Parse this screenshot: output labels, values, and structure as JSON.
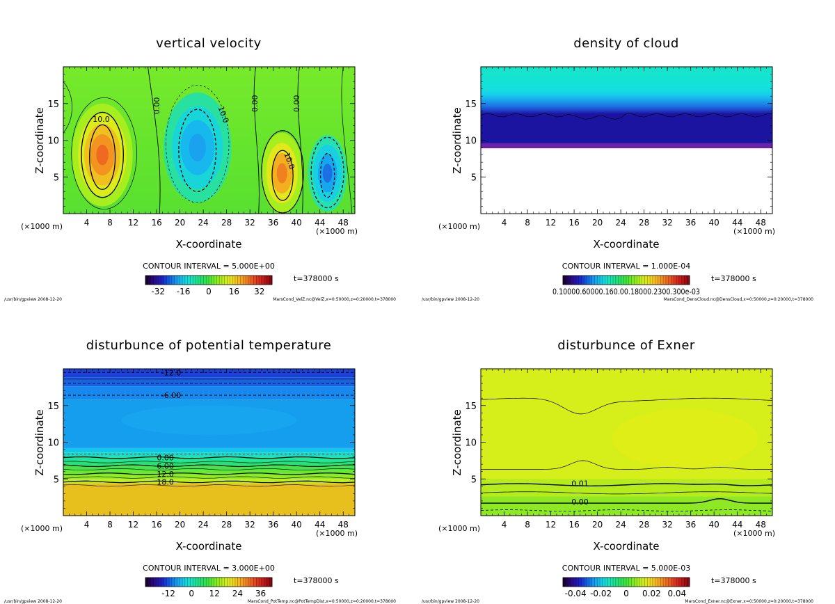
{
  "chart_data": [
    {
      "type": "heatmap",
      "title": "vertical velocity",
      "xlabel": "X-coordinate",
      "ylabel": "Z-coordinate",
      "x_unit": "(×1000 m)",
      "xticks": [
        4,
        8,
        12,
        16,
        20,
        24,
        28,
        32,
        36,
        40,
        44,
        48
      ],
      "yticks": [
        5,
        10,
        15
      ],
      "xlim": [
        0,
        50
      ],
      "ylim": [
        0,
        20
      ],
      "contour_interval": "CONTOUR INTERVAL = 5.000E+00",
      "contour_labels": [
        {
          "text": "10.0",
          "x": 6.5,
          "z": 12.9
        },
        {
          "text": "0.00",
          "x": 16,
          "z": 14.7
        },
        {
          "text": "10.0",
          "x": 27.5,
          "z": 13.5
        },
        {
          "text": "0.00",
          "x": 32.8,
          "z": 15
        },
        {
          "text": "0.00",
          "x": 40,
          "z": 15
        },
        {
          "text": "10.0",
          "x": 38.8,
          "z": 7.2
        }
      ],
      "colorbar_ticks": [
        "-32",
        "-16",
        "0",
        "16",
        "32"
      ],
      "colorbar_range": [
        -40,
        40
      ],
      "time_label": "t=378000 s",
      "footer_left": "/usr/bin/gpview  2008-12-20",
      "footer_right": "MarsCond_VelZ.nc@VelZ,x=0:50000,z=0:20000,t=378000"
    },
    {
      "type": "heatmap",
      "title": "density of cloud",
      "xlabel": "X-coordinate",
      "ylabel": "Z-coordinate",
      "x_unit": "(×1000 m)",
      "xticks": [
        4,
        8,
        12,
        16,
        20,
        24,
        28,
        32,
        36,
        40,
        44,
        48
      ],
      "yticks": [
        5,
        10,
        15
      ],
      "xlim": [
        0,
        50
      ],
      "ylim": [
        0,
        20
      ],
      "contour_interval": "CONTOUR INTERVAL = 1.000E-04",
      "colorbar_ticks": [
        "0.10000.60000.160.00.18000.2300.300e-03"
      ],
      "time_label": "t=378000 s",
      "footer_left": "/usr/bin/gpview  2008-12-20",
      "footer_right": "MarsCond_DensCloud.nc@DensCloud,x=0:50000,z=0:20000,t=378000"
    },
    {
      "type": "heatmap",
      "title": "disturbunce of potential temperature",
      "xlabel": "X-coordinate",
      "ylabel": "Z-coordinate",
      "x_unit": "(×1000 m)",
      "xticks": [
        4,
        8,
        12,
        16,
        20,
        24,
        28,
        32,
        36,
        40,
        44,
        48
      ],
      "yticks": [
        5,
        10,
        15
      ],
      "xlim": [
        0,
        50
      ],
      "ylim": [
        0,
        20
      ],
      "contour_interval": "CONTOUR INTERVAL = 3.000E+00",
      "contour_labels": [
        {
          "text": "-12.0",
          "x": 18.5,
          "z": 19.5
        },
        {
          "text": "-6.00",
          "x": 18.5,
          "z": 16.4
        },
        {
          "text": "0.00",
          "x": 17.5,
          "z": 7.9
        },
        {
          "text": "6.00",
          "x": 17.5,
          "z": 6.8
        },
        {
          "text": "12.0",
          "x": 17.5,
          "z": 5.7
        },
        {
          "text": "18.0",
          "x": 17.5,
          "z": 4.6
        }
      ],
      "colorbar_ticks": [
        "-12",
        "0",
        "12",
        "24",
        "36"
      ],
      "colorbar_range": [
        -24,
        42
      ],
      "time_label": "t=378000 s",
      "footer_left": "/usr/bin/gpview  2008-12-20",
      "footer_right": "MarsCond_PotTemp.nc@PotTempDist,x=0:50000,z=0:20000,t=378000"
    },
    {
      "type": "heatmap",
      "title": "disturbunce of Exner",
      "xlabel": "X-coordinate",
      "ylabel": "Z-coordinate",
      "x_unit": "(×1000 m)",
      "xticks": [
        4,
        8,
        12,
        16,
        20,
        24,
        28,
        32,
        36,
        40,
        44,
        48
      ],
      "yticks": [
        5,
        10,
        15
      ],
      "xlim": [
        0,
        50
      ],
      "ylim": [
        0,
        20
      ],
      "contour_interval": "CONTOUR INTERVAL = 5.000E-03",
      "contour_labels": [
        {
          "text": "0.01",
          "x": 17,
          "z": 4.4
        },
        {
          "text": "0.00",
          "x": 17,
          "z": 1.9
        }
      ],
      "colorbar_ticks": [
        "-0.04",
        "-0.02",
        "0",
        "0.02",
        "0.04"
      ],
      "colorbar_range": [
        -0.05,
        0.05
      ],
      "time_label": "t=378000 s",
      "footer_left": "/usr/bin/gpview  2008-12-20",
      "footer_right": "MarsCond_Exner.nc@Exner,x=0:50000,z=0:20000,t=378000"
    }
  ],
  "colors": {
    "rainbow": [
      "#1a0033",
      "#2b0a8c",
      "#1d22c8",
      "#1166e6",
      "#16a6ee",
      "#14d6e6",
      "#18e6b0",
      "#22e070",
      "#3ee83a",
      "#86ec1e",
      "#c6ee1a",
      "#eee01e",
      "#f6b020",
      "#f07a20",
      "#e44420",
      "#c81a18",
      "#8a0810"
    ]
  }
}
